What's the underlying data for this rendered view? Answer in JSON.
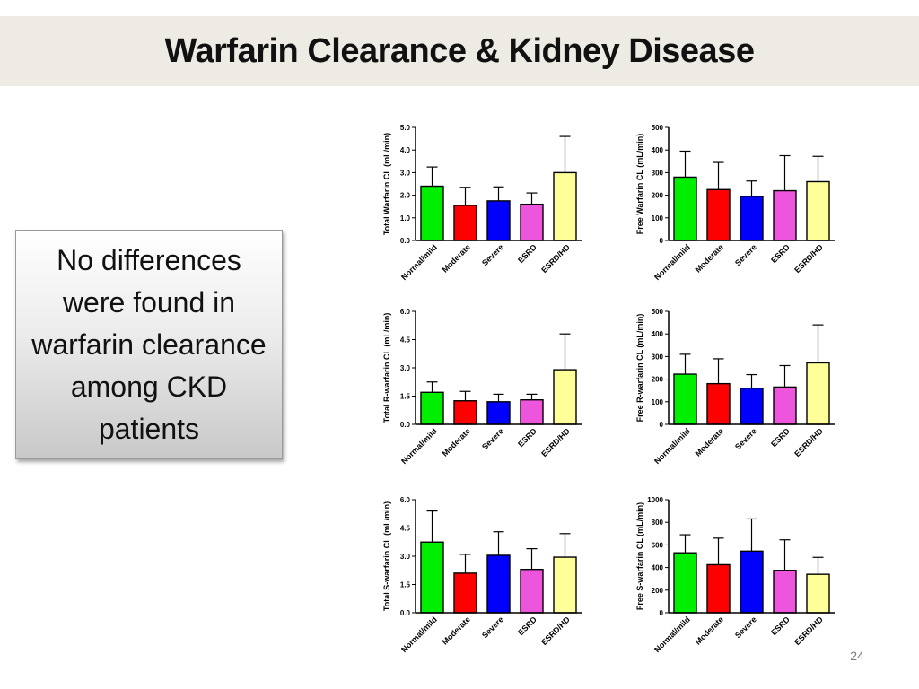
{
  "slide": {
    "title": "Warfarin Clearance & Kidney Disease",
    "callout": "No differences were found in warfarin clearance among CKD patients",
    "page_number": "24"
  },
  "colors": {
    "title_bg": "#edebe3",
    "bars": [
      "#00ee00",
      "#ff0000",
      "#0000ff",
      "#ee55dd",
      "#ffff99"
    ]
  },
  "chart_data": [
    {
      "type": "bar",
      "categories": [
        "Normal/mild",
        "Moderate",
        "Severe",
        "ESRD",
        "ESRD/HD"
      ],
      "values": [
        2.4,
        1.55,
        1.75,
        1.6,
        3.0
      ],
      "errors": [
        0.85,
        0.8,
        0.62,
        0.5,
        1.6
      ],
      "ylabel": "Total Warfarin CL (mL/min)",
      "ylim": [
        0,
        5
      ],
      "ticks": [
        "0.0",
        "1.0",
        "2.0",
        "3.0",
        "4.0",
        "5.0"
      ]
    },
    {
      "type": "bar",
      "categories": [
        "Normal/mild",
        "Moderate",
        "Severe",
        "ESRD",
        "ESRD/HD"
      ],
      "values": [
        280,
        225,
        195,
        220,
        260
      ],
      "errors": [
        115,
        120,
        68,
        155,
        112
      ],
      "ylabel": "Free Warfarin CL (mL/min)",
      "ylim": [
        0,
        500
      ],
      "ticks": [
        "0",
        "100",
        "200",
        "300",
        "400",
        "500"
      ]
    },
    {
      "type": "bar",
      "categories": [
        "Normal/mild",
        "Moderate",
        "Severe",
        "ESRD",
        "ESRD/HD"
      ],
      "values": [
        1.7,
        1.25,
        1.2,
        1.3,
        2.9
      ],
      "errors": [
        0.55,
        0.5,
        0.4,
        0.3,
        1.9
      ],
      "ylabel": "Total R-warfarin CL (mL/min)",
      "ylim": [
        0,
        6
      ],
      "ticks": [
        "0.0",
        "1.5",
        "3.0",
        "4.5",
        "6.0"
      ]
    },
    {
      "type": "bar",
      "categories": [
        "Normal/mild",
        "Moderate",
        "Severe",
        "ESRD",
        "ESRD/HD"
      ],
      "values": [
        222,
        180,
        160,
        165,
        272
      ],
      "errors": [
        88,
        110,
        60,
        95,
        168
      ],
      "ylabel": "Free R-warfarin CL (mL/min)",
      "ylim": [
        0,
        500
      ],
      "ticks": [
        "0",
        "100",
        "200",
        "300",
        "400",
        "500"
      ]
    },
    {
      "type": "bar",
      "categories": [
        "Normal/mild",
        "Moderate",
        "Severe",
        "ESRD",
        "ESRD/HD"
      ],
      "values": [
        3.75,
        2.1,
        3.05,
        2.3,
        2.95
      ],
      "errors": [
        1.65,
        1.0,
        1.25,
        1.1,
        1.25
      ],
      "ylabel": "Total S-warfarin CL (mL/min)",
      "ylim": [
        0,
        6
      ],
      "ticks": [
        "0.0",
        "1.5",
        "3.0",
        "4.5",
        "6.0"
      ]
    },
    {
      "type": "bar",
      "categories": [
        "Normal/mild",
        "Moderate",
        "Severe",
        "ESRD",
        "ESRD/HD"
      ],
      "values": [
        530,
        425,
        545,
        375,
        340
      ],
      "errors": [
        160,
        235,
        285,
        270,
        150
      ],
      "ylabel": "Free S-warfarin CL (mL/min)",
      "ylim": [
        0,
        1000
      ],
      "ticks": [
        "0",
        "200",
        "400",
        "600",
        "800",
        "1000"
      ]
    }
  ]
}
